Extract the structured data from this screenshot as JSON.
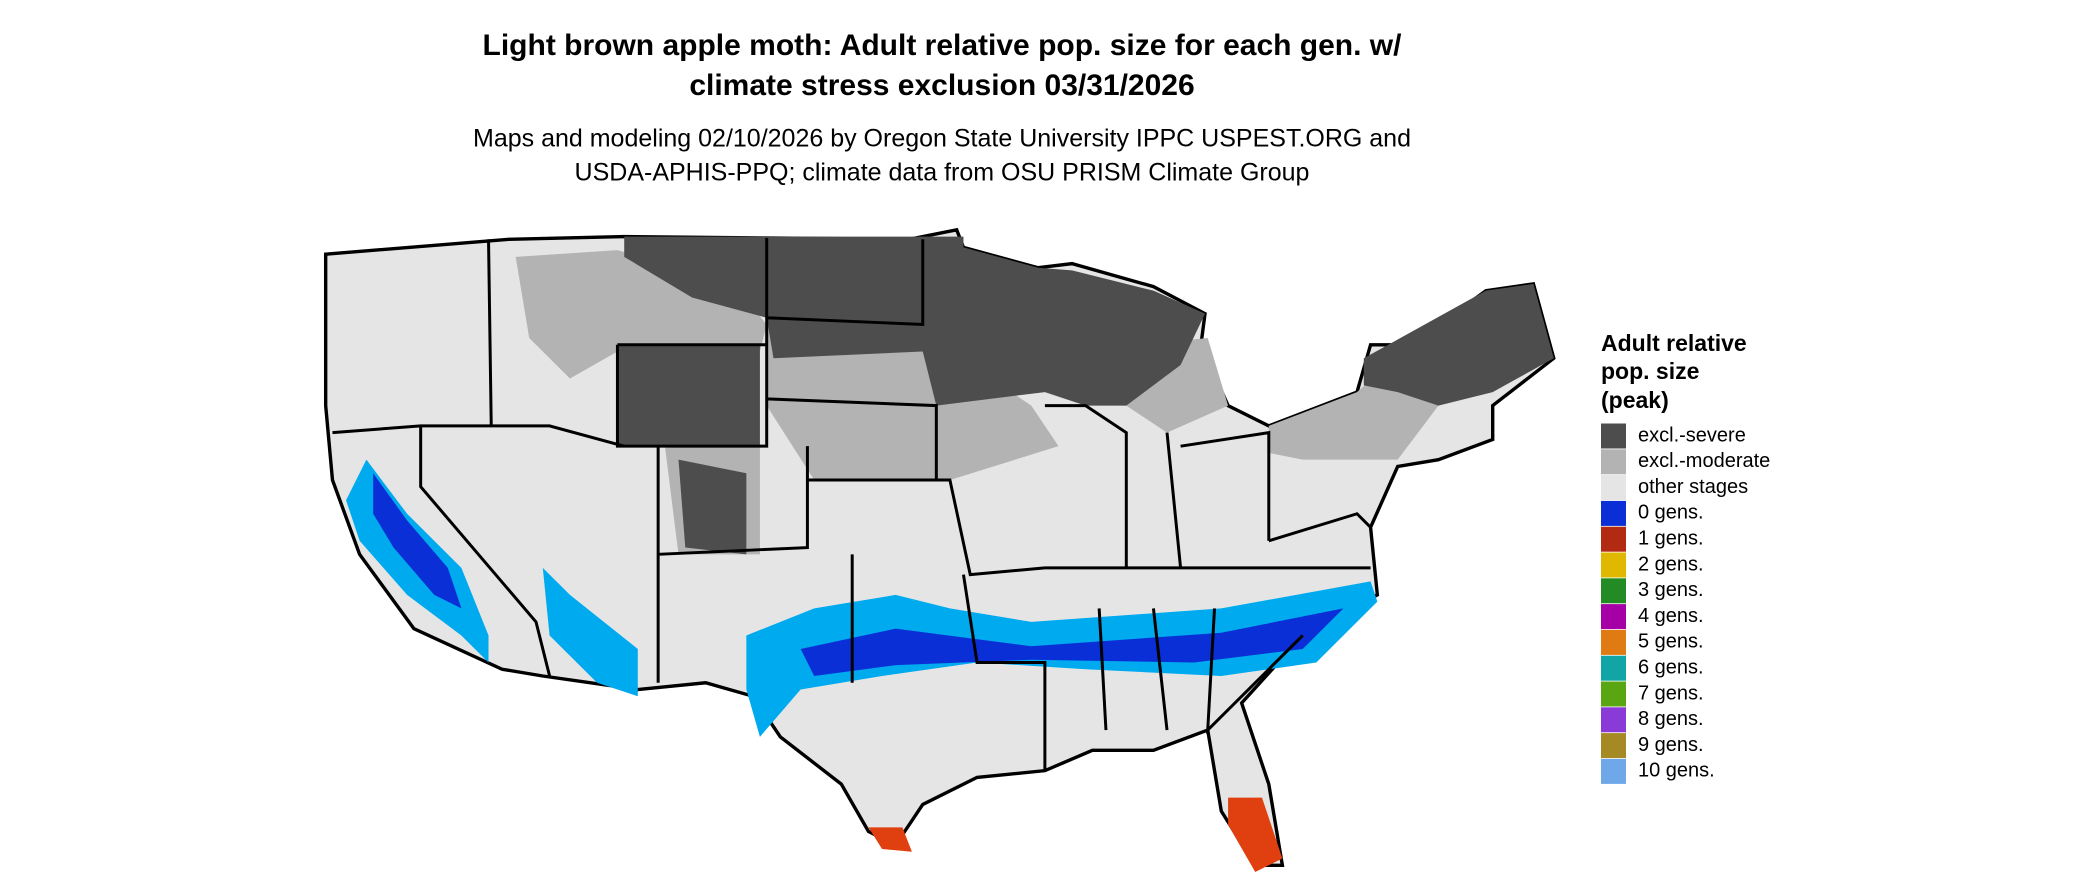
{
  "header": {
    "title_lines": [
      "Light brown apple moth: Adult relative pop. size for each gen. w/",
      "climate stress exclusion 03/31/2026"
    ],
    "subtitle_lines": [
      "Maps and modeling 02/10/2026 by Oregon State University IPPC USPEST.ORG and",
      "USDA-APHIS-PPQ; climate data from OSU PRISM Climate Group"
    ]
  },
  "legend": {
    "title_lines": [
      "Adult relative",
      "pop. size",
      "(peak)"
    ],
    "items": [
      {
        "label": "excl.-severe",
        "color": "#4d4d4d"
      },
      {
        "label": "excl.-moderate",
        "color": "#b3b3b3"
      },
      {
        "label": "other stages",
        "color": "#e5e5e5"
      },
      {
        "label": "0 gens.",
        "color": "#0a2fd6"
      },
      {
        "label": "1 gens.",
        "color": "#b22a12"
      },
      {
        "label": "2 gens.",
        "color": "#e0b800"
      },
      {
        "label": "3 gens.",
        "color": "#238b23"
      },
      {
        "label": "4 gens.",
        "color": "#a500a5"
      },
      {
        "label": "5 gens.",
        "color": "#e07a12"
      },
      {
        "label": "6 gens.",
        "color": "#12a5a5"
      },
      {
        "label": "7 gens.",
        "color": "#5aa512"
      },
      {
        "label": "8 gens.",
        "color": "#8a3ad6"
      },
      {
        "label": "9 gens.",
        "color": "#a58a23"
      },
      {
        "label": "10 gens.",
        "color": "#6fa8e8"
      }
    ]
  }
}
